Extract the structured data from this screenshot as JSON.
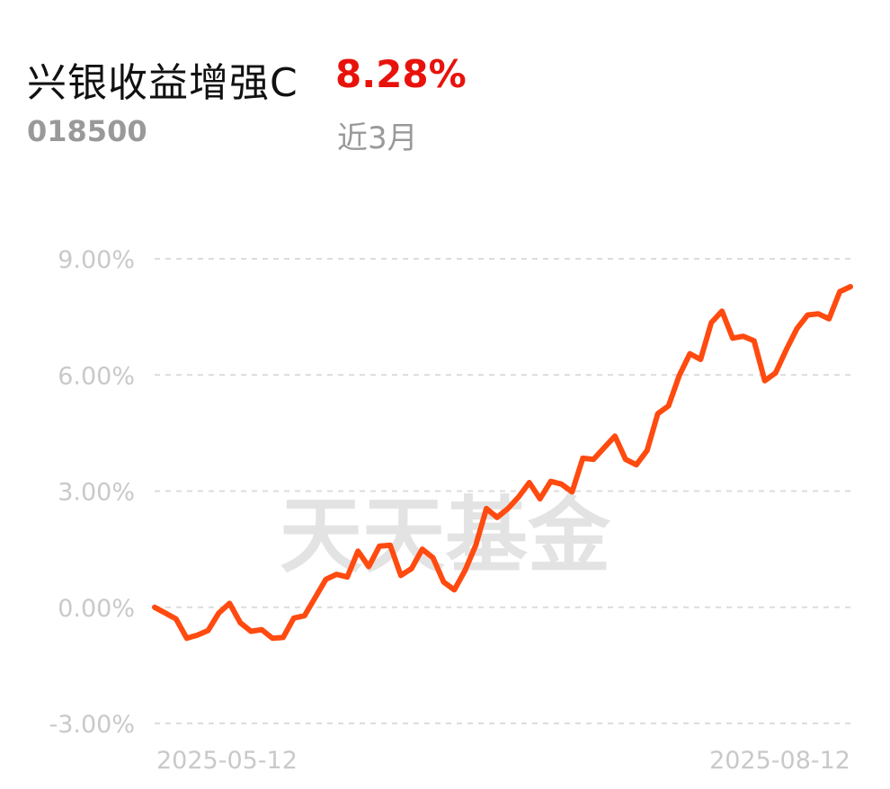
{
  "header": {
    "fund_name": "兴银收益增强C",
    "return_value": "8.28%",
    "fund_code": "018500",
    "period_label": "近3月"
  },
  "watermark": "天天基金",
  "colors": {
    "line": "#ff4a10",
    "return": "#e8120c",
    "grid": "#dcdcdc",
    "tick": "#c9c9c9"
  },
  "chart_data": {
    "type": "line",
    "title": "",
    "xlabel": "",
    "ylabel": "",
    "ylim": [
      -3,
      9
    ],
    "y_ticks": [
      "9.00%",
      "6.00%",
      "3.00%",
      "0.00%",
      "-3.00%"
    ],
    "y_tick_values": [
      9,
      6,
      3,
      0,
      -3
    ],
    "x_tick_labels": [
      "2025-05-12",
      "2025-08-12"
    ],
    "x_range": [
      "2025-05-12",
      "2025-08-12"
    ],
    "grid": "horizontal dashed",
    "legend": "none",
    "series": [
      {
        "values": [
          0.0,
          -0.15,
          -0.3,
          -0.8,
          -0.72,
          -0.6,
          -0.15,
          0.1,
          -0.4,
          -0.62,
          -0.58,
          -0.8,
          -0.78,
          -0.28,
          -0.22,
          0.25,
          0.72,
          0.85,
          0.78,
          1.45,
          1.05,
          1.58,
          1.6,
          0.82,
          1.0,
          1.5,
          1.28,
          0.65,
          0.45,
          0.95,
          1.6,
          2.55,
          2.32,
          2.55,
          2.85,
          3.22,
          2.8,
          3.25,
          3.18,
          2.98,
          3.85,
          3.82,
          4.12,
          4.42,
          3.82,
          3.68,
          4.05,
          5.0,
          5.2,
          5.98,
          6.55,
          6.4,
          7.35,
          7.65,
          6.95,
          7.0,
          6.88,
          5.85,
          6.05,
          6.65,
          7.2,
          7.55,
          7.58,
          7.45,
          8.15,
          8.28
        ]
      }
    ]
  }
}
